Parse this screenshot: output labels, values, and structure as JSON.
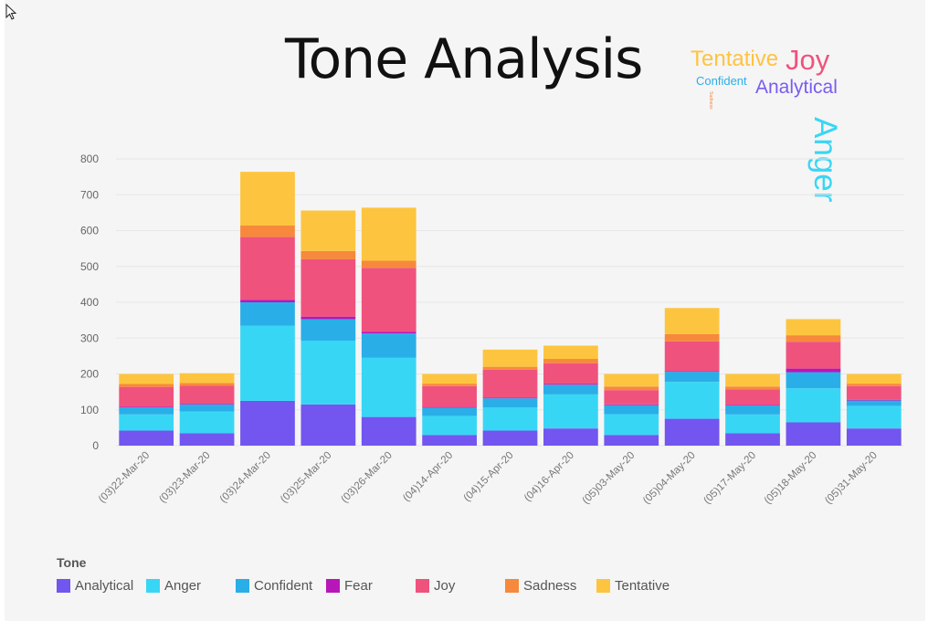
{
  "title": "Tone Analysis",
  "word_cloud": [
    {
      "text": "Tentative",
      "color": "#ffc340"
    },
    {
      "text": "Joy",
      "color": "#f0527e"
    },
    {
      "text": "Anger",
      "color": "#38d6f5"
    },
    {
      "text": "Confident",
      "color": "#2aaee8"
    },
    {
      "text": "Analytical",
      "color": "#7a5cf0"
    },
    {
      "text": "Sadness",
      "color": "#f7893c"
    }
  ],
  "legend_title": "Tone",
  "chart_data": {
    "type": "bar",
    "stacked": true,
    "title": "Tone Analysis",
    "xlabel": "",
    "ylabel": "",
    "ylim": [
      0,
      800
    ],
    "yticks": [
      0,
      100,
      200,
      300,
      400,
      500,
      600,
      700,
      800
    ],
    "grid": true,
    "legend_position": "bottom-left",
    "categories": [
      "(03)22-Mar-20",
      "(03)23-Mar-20",
      "(03)24-Mar-20",
      "(03)25-Mar-20",
      "(03)26-Mar-20",
      "(04)14-Apr-20",
      "(04)15-Apr-20",
      "(04)16-Apr-20",
      "(05)03-May-20",
      "(05)04-May-20",
      "(05)17-May-20",
      "(05)18-May-20",
      "(05)31-May-20"
    ],
    "series": [
      {
        "name": "Analytical",
        "color": "#7355f0",
        "values": [
          42,
          35,
          125,
          115,
          80,
          30,
          42,
          48,
          30,
          75,
          35,
          65,
          48
        ]
      },
      {
        "name": "Anger",
        "color": "#38d6f5",
        "values": [
          45,
          60,
          210,
          178,
          165,
          53,
          65,
          95,
          58,
          103,
          52,
          95,
          63
        ]
      },
      {
        "name": "Confident",
        "color": "#2aaee8",
        "values": [
          20,
          20,
          65,
          60,
          68,
          23,
          25,
          27,
          25,
          28,
          25,
          45,
          15
        ]
      },
      {
        "name": "Fear",
        "color": "#b816b8",
        "values": [
          2,
          2,
          7,
          7,
          5,
          2,
          2,
          2,
          2,
          2,
          2,
          10,
          2
        ]
      },
      {
        "name": "Joy",
        "color": "#f0527e",
        "values": [
          55,
          50,
          175,
          160,
          178,
          58,
          78,
          58,
          40,
          83,
          43,
          75,
          38
        ]
      },
      {
        "name": "Sadness",
        "color": "#f7893c",
        "values": [
          8,
          8,
          32,
          23,
          20,
          7,
          8,
          12,
          10,
          20,
          8,
          18,
          7
        ]
      },
      {
        "name": "Tentative",
        "color": "#fdc53f",
        "values": [
          28,
          27,
          150,
          113,
          148,
          27,
          48,
          37,
          35,
          73,
          35,
          45,
          27
        ]
      }
    ]
  }
}
